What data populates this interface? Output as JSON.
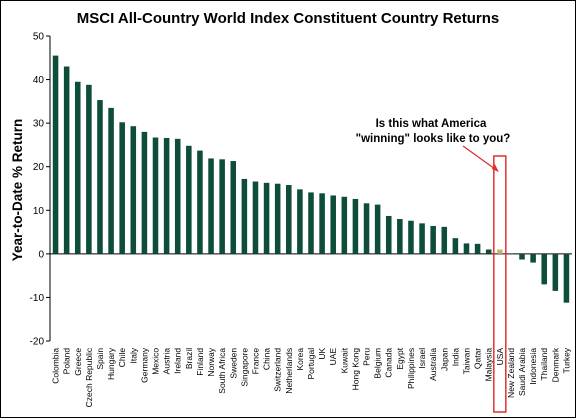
{
  "chart_data": {
    "type": "bar",
    "title": "MSCI All-Country World Index Constituent Country Returns",
    "ylabel": "Year-to-Date % Return",
    "xlabel": "",
    "ylim": [
      -20,
      50
    ],
    "yticks": [
      -20,
      -10,
      0,
      10,
      20,
      30,
      40,
      50
    ],
    "grid": false,
    "legend": "none",
    "bar_color": "#0e4d3c",
    "highlight_color": "#c8b472",
    "box_color": "#e03030",
    "categories": [
      "Colombia",
      "Poland",
      "Greece",
      "Czech Republic",
      "Spain",
      "Hungary",
      "Chile",
      "Italy",
      "Germany",
      "Mexico",
      "Austria",
      "Ireland",
      "Brazil",
      "Finland",
      "Norway",
      "South Africa",
      "Sweden",
      "Singapore",
      "France",
      "China",
      "Switzerland",
      "Netherlands",
      "Korea",
      "Portugal",
      "UK",
      "UAE",
      "Kuwait",
      "Hong Kong",
      "Peru",
      "Belgium",
      "Canada",
      "Egypt",
      "Philippines",
      "Israel",
      "Australia",
      "Japan",
      "India",
      "Taiwan",
      "Qatar",
      "Malaysia",
      "USA",
      "New Zealand",
      "Saudi Arabia",
      "Indonesia",
      "Thailand",
      "Denmark",
      "Turkey"
    ],
    "values": [
      45.5,
      43.0,
      39.5,
      38.8,
      35.3,
      33.5,
      30.2,
      29.3,
      28.0,
      26.7,
      26.6,
      26.4,
      24.8,
      23.7,
      21.9,
      21.7,
      21.3,
      17.2,
      16.6,
      16.3,
      16.1,
      15.8,
      14.8,
      14.1,
      13.9,
      13.4,
      13.1,
      12.6,
      11.6,
      11.3,
      8.7,
      8.0,
      7.6,
      7.0,
      6.4,
      6.2,
      3.6,
      2.4,
      2.3,
      1.0,
      1.0,
      0.1,
      -1.3,
      -2.0,
      -7.0,
      -8.5,
      -11.2
    ],
    "highlight_category": "USA",
    "annotation": {
      "line1": "Is this what America",
      "line2": "\"winning\" looks like to you?"
    }
  }
}
